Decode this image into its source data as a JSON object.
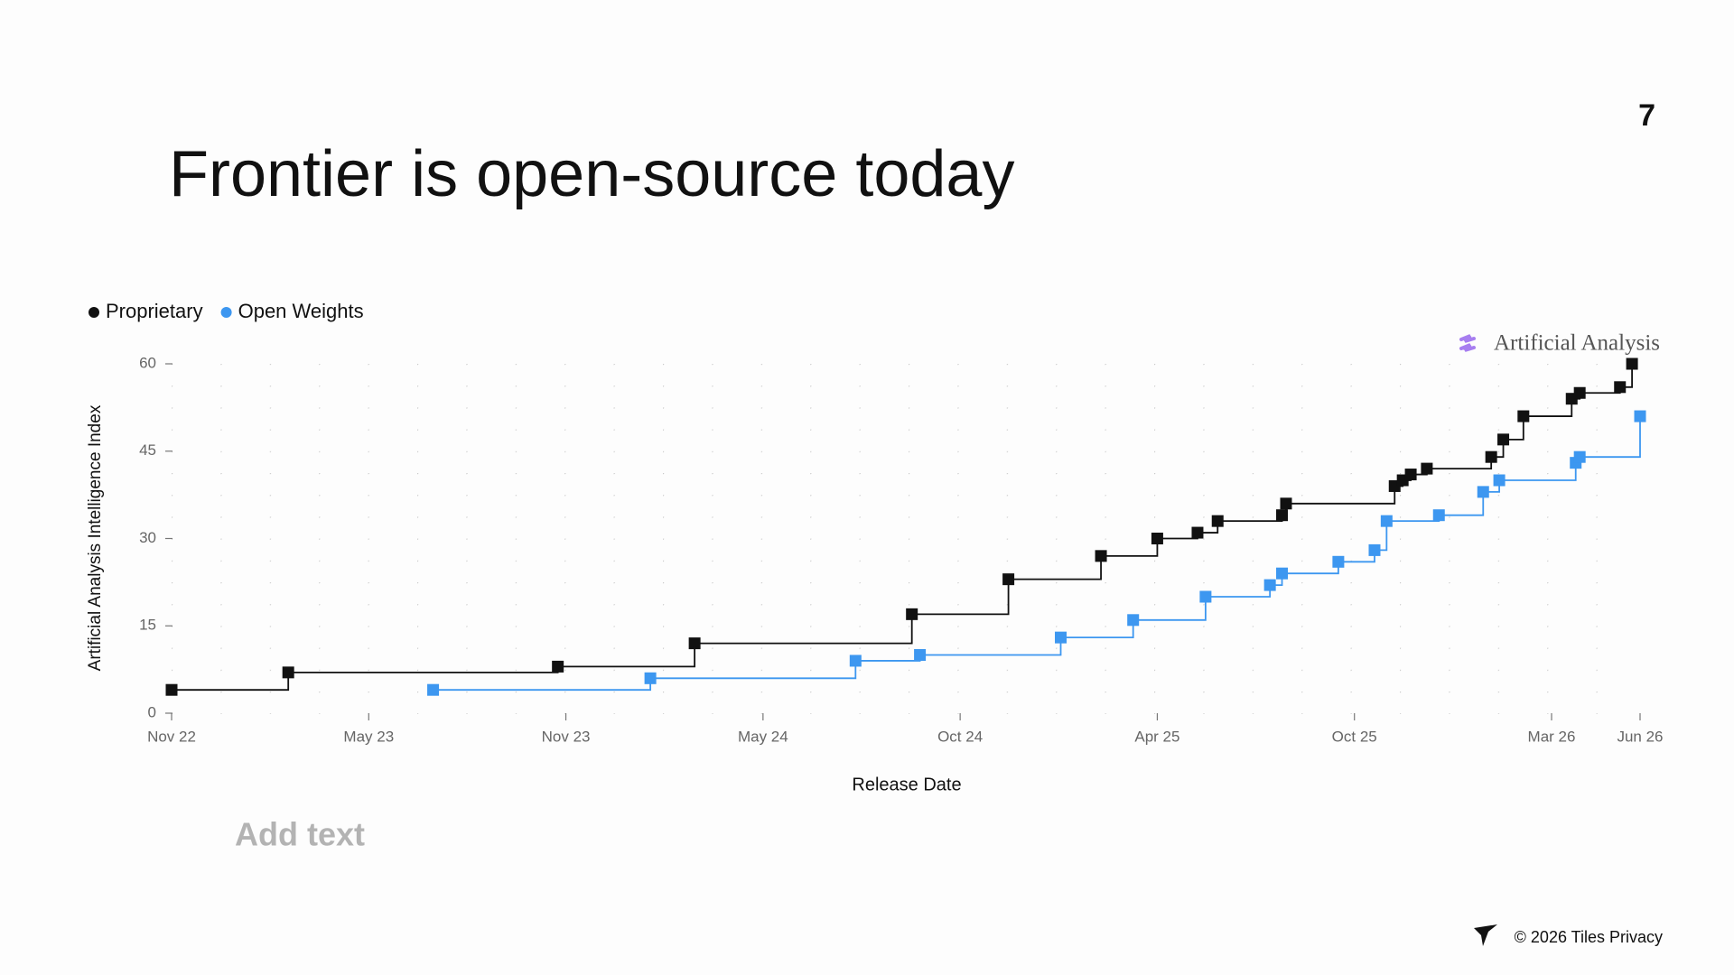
{
  "slide_number": 7,
  "title": "Frontier is open-source today",
  "add_text": "Add text",
  "footer": "© 2026 Tiles Privacy",
  "chart_data": {
    "type": "step",
    "step": "post",
    "source_logo": "Artificial Analysis",
    "x_label": "Release Date",
    "y_label": "Artificial Analysis Intelligence Index",
    "xlim": [
      2022.85,
      2026.5
    ],
    "xticks": [
      {
        "value": 2022.85,
        "label": "Nov 22"
      },
      {
        "value": 2023.34,
        "label": "May 23"
      },
      {
        "value": 2023.83,
        "label": "Nov 23"
      },
      {
        "value": 2024.32,
        "label": "May 24"
      },
      {
        "value": 2024.81,
        "label": "Oct 24"
      },
      {
        "value": 2025.3,
        "label": "Apr 25"
      },
      {
        "value": 2025.79,
        "label": "Oct 25"
      },
      {
        "value": 2026.28,
        "label": "Mar 26"
      },
      {
        "value": 2026.5,
        "label": "Jun 26"
      }
    ],
    "ylim": [
      0,
      60
    ],
    "yticks": [
      0,
      15,
      30,
      45,
      60
    ],
    "grid": true,
    "legend": "top-left",
    "series": [
      {
        "name": "Proprietary",
        "color": "#111111",
        "x": [
          2022.85,
          2023.14,
          2023.81,
          2024.15,
          2024.69,
          2024.93,
          2025.16,
          2025.3,
          2025.4,
          2025.45,
          2025.61,
          2025.62,
          2025.89,
          2025.91,
          2025.93,
          2025.97,
          2026.13,
          2026.16,
          2026.21,
          2026.33,
          2026.35,
          2026.45,
          2026.48
        ],
        "values": [
          4,
          7,
          8,
          12,
          17,
          23,
          27,
          30,
          31,
          33,
          34,
          36,
          39,
          40,
          41,
          42,
          44,
          47,
          51,
          54,
          55,
          56,
          60
        ]
      },
      {
        "name": "Open Weights",
        "color": "#3d97f0",
        "x": [
          2023.5,
          2024.04,
          2024.55,
          2024.71,
          2025.06,
          2025.24,
          2025.42,
          2025.58,
          2025.61,
          2025.75,
          2025.84,
          2025.87,
          2026.0,
          2026.11,
          2026.15,
          2026.34,
          2026.35,
          2026.5
        ],
        "values": [
          4,
          6,
          9,
          10,
          13,
          16,
          20,
          22,
          24,
          26,
          28,
          33,
          34,
          38,
          40,
          43,
          44,
          51
        ]
      }
    ]
  }
}
